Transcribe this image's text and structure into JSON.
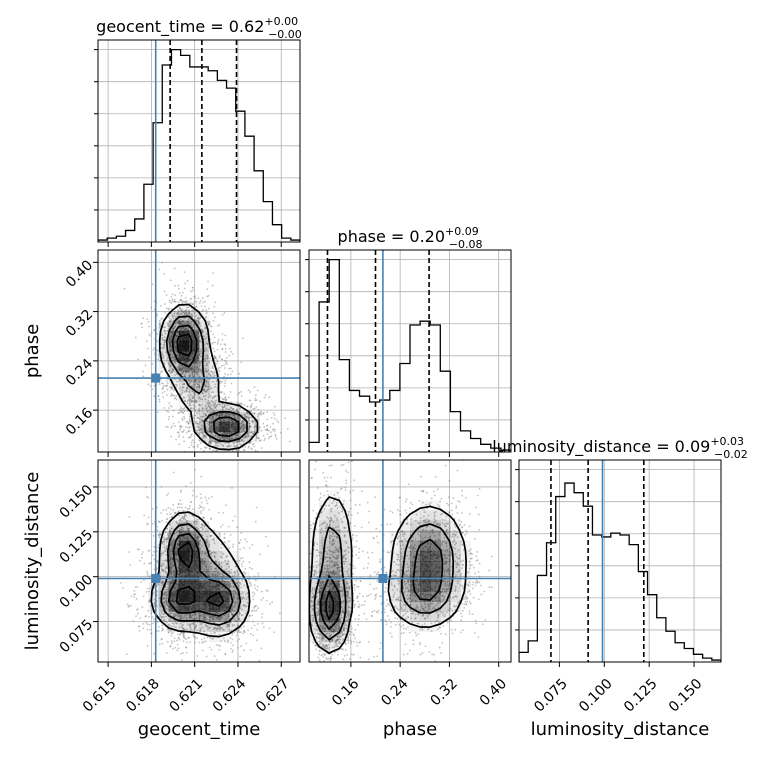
{
  "chart_data": {
    "type": "corner",
    "parameters": [
      "geocent_time",
      "phase",
      "luminosity_distance"
    ],
    "axis_labels": [
      "geocent_time",
      "phase",
      "luminosity_distance"
    ],
    "titles": [
      {
        "prefix": "geocent_time = 0.62",
        "sup": "+0.00",
        "sub": "−0.00"
      },
      {
        "prefix": "phase = 0.20",
        "sup": "+0.09",
        "sub": "−0.08"
      },
      {
        "prefix": "luminosity_distance = 0.09",
        "sup": "+0.03",
        "sub": "−0.02"
      }
    ],
    "ranges": [
      [
        0.6143,
        0.6283
      ],
      [
        0.092,
        0.42
      ],
      [
        0.0525,
        0.165
      ]
    ],
    "ticks": [
      {
        "values": [
          0.615,
          0.618,
          0.621,
          0.624,
          0.627
        ],
        "labels": [
          "0.615",
          "0.618",
          "0.621",
          "0.624",
          "0.627"
        ]
      },
      {
        "values": [
          0.16,
          0.24,
          0.32,
          0.4
        ],
        "labels": [
          "0.16",
          "0.24",
          "0.32",
          "0.40"
        ]
      },
      {
        "values": [
          0.075,
          0.1,
          0.125,
          0.15
        ],
        "labels": [
          "0.075",
          "0.100",
          "0.125",
          "0.150"
        ]
      }
    ],
    "truths": [
      0.6183,
      0.212,
      0.099
    ],
    "quantile_lines": [
      [
        0.6193,
        0.6215,
        0.6239
      ],
      [
        0.122,
        0.2,
        0.287
      ],
      [
        0.0703,
        0.091,
        0.122
      ]
    ],
    "histograms": [
      [
        0.01,
        0.02,
        0.03,
        0.06,
        0.12,
        0.3,
        0.62,
        0.92,
        1.0,
        0.97,
        0.91,
        0.91,
        0.89,
        0.84,
        0.8,
        0.68,
        0.55,
        0.37,
        0.21,
        0.09,
        0.02,
        0.01
      ],
      [
        0.05,
        0.78,
        1.0,
        0.48,
        0.32,
        0.29,
        0.26,
        0.27,
        0.32,
        0.46,
        0.66,
        0.68,
        0.66,
        0.42,
        0.21,
        0.11,
        0.07,
        0.04,
        0.02,
        0.01
      ],
      [
        0.05,
        0.11,
        0.45,
        0.62,
        0.86,
        0.93,
        0.88,
        0.81,
        0.66,
        0.65,
        0.67,
        0.66,
        0.61,
        0.47,
        0.35,
        0.23,
        0.16,
        0.1,
        0.07,
        0.04,
        0.02,
        0.01
      ]
    ],
    "hist_ylim": [
      0,
      1.05
    ],
    "grid": true,
    "truth_color": "#4682b4",
    "line_color": "#000000",
    "point_color": "#7a7a7a",
    "density_color": "#000000",
    "density_modes": [
      {
        "pair": [
          0,
          1
        ],
        "blobs": [
          {
            "x": 0.6203,
            "y": 0.268,
            "sx": 0.0008,
            "sy": 0.03,
            "w": 1.0
          },
          {
            "x": 0.6232,
            "y": 0.133,
            "sx": 0.00105,
            "sy": 0.017,
            "w": 0.9
          },
          {
            "x": 0.6213,
            "y": 0.2,
            "sx": 0.0009,
            "sy": 0.028,
            "w": 0.35
          }
        ]
      },
      {
        "pair": [
          0,
          2
        ],
        "blobs": [
          {
            "x": 0.6203,
            "y": 0.115,
            "sx": 0.00075,
            "sy": 0.01,
            "w": 0.95
          },
          {
            "x": 0.62,
            "y": 0.087,
            "sx": 0.00095,
            "sy": 0.008,
            "w": 0.85
          },
          {
            "x": 0.6228,
            "y": 0.086,
            "sx": 0.001,
            "sy": 0.009,
            "w": 0.85
          },
          {
            "x": 0.6214,
            "y": 0.1,
            "sx": 0.0015,
            "sy": 0.016,
            "w": 0.45
          }
        ]
      },
      {
        "pair": [
          1,
          2
        ],
        "blobs": [
          {
            "x": 0.126,
            "y": 0.082,
            "sx": 0.016,
            "sy": 0.012,
            "w": 1.0
          },
          {
            "x": 0.13,
            "y": 0.115,
            "sx": 0.018,
            "sy": 0.018,
            "w": 0.5
          },
          {
            "x": 0.287,
            "y": 0.112,
            "sx": 0.03,
            "sy": 0.014,
            "w": 0.8
          },
          {
            "x": 0.28,
            "y": 0.09,
            "sx": 0.032,
            "sy": 0.01,
            "w": 0.55
          }
        ]
      }
    ]
  }
}
